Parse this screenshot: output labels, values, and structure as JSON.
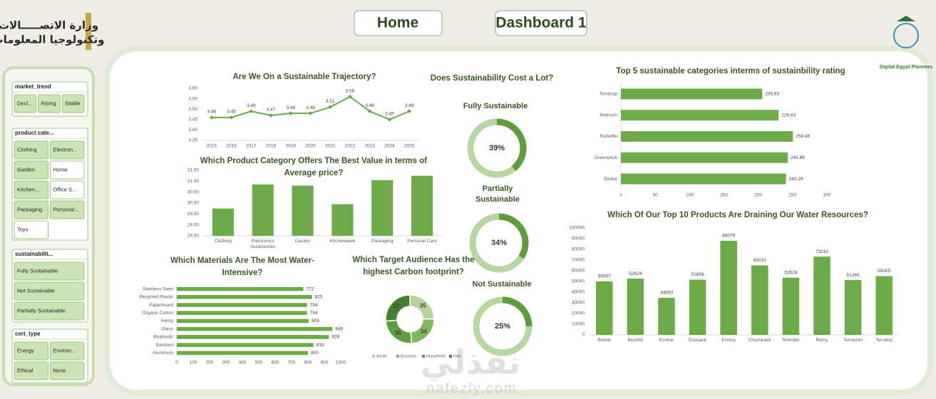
{
  "header": {
    "ministry_logo": [
      "وزارة الاتصـــــالات",
      "وتكنولوجيا المعلومات"
    ],
    "buttons": [
      "Home",
      "Dashboard 1"
    ],
    "partner_logo": "Digital Egypt Pioneers"
  },
  "watermark": [
    "نفذلي",
    "nafezly.com"
  ],
  "slicers": [
    {
      "title": "market_trend",
      "items": [
        {
          "label": "Decl...",
          "selected": true
        },
        {
          "label": "Rising",
          "selected": true
        },
        {
          "label": "Stable",
          "selected": true
        }
      ]
    },
    {
      "title": "product cate...",
      "items": [
        {
          "label": "Clothing",
          "selected": true
        },
        {
          "label": "Electron...",
          "selected": true
        },
        {
          "label": "Garden",
          "selected": true
        },
        {
          "label": "Home",
          "selected": false
        },
        {
          "label": "Kitchen...",
          "selected": true
        },
        {
          "label": "Office S...",
          "selected": false
        },
        {
          "label": "Packaging",
          "selected": true
        },
        {
          "label": "Personal...",
          "selected": true
        },
        {
          "label": "Toys",
          "selected": false
        }
      ]
    },
    {
      "title": "sustainabilit...",
      "items": [
        {
          "label": "Fully Sustainable",
          "selected": true
        },
        {
          "label": "Not Sustainable",
          "selected": true
        },
        {
          "label": "Partially Sustainable",
          "selected": true
        }
      ]
    },
    {
      "title": "cert_type",
      "items": [
        {
          "label": "Energy",
          "selected": true
        },
        {
          "label": "Environ...",
          "selected": true
        },
        {
          "label": "Ethical",
          "selected": true
        },
        {
          "label": "None",
          "selected": true
        }
      ]
    }
  ],
  "chart_data": [
    {
      "type": "line",
      "title": "Are We On a Sustainable Trajectory?",
      "categories": [
        "2015",
        "2016",
        "2017",
        "2018",
        "2019",
        "2020",
        "2021",
        "2022",
        "2023",
        "2024",
        "2025"
      ],
      "values": [
        3.46,
        3.46,
        3.49,
        3.47,
        3.48,
        3.48,
        3.51,
        3.56,
        3.49,
        3.45,
        3.49
      ],
      "color": "#6aa84f",
      "ylim": [
        3.35,
        3.6
      ],
      "yticks": [
        3.35,
        {
          "value": 3.4,
          "label": "3.40"
        },
        3.45,
        {
          "value": 3.5,
          "label": "3.50"
        },
        3.55,
        {
          "value": 3.6,
          "label": "3.60"
        }
      ],
      "grid": false,
      "show_values": true
    },
    {
      "type": "bar",
      "title": "Which Product Category Offers The Best Value in terms of Average price?",
      "categories": [
        "Clothing",
        "Electronics Accessories",
        "Garden",
        "Kitchenware",
        "Packaging",
        "Personal Care"
      ],
      "values": [
        29.75,
        30.85,
        30.8,
        29.95,
        31.05,
        31.25
      ],
      "color": "#6cab47",
      "ylim": [
        28.5,
        31.5
      ],
      "yticks": [
        {
          "value": 28.5,
          "label": "28.50"
        },
        {
          "value": 29,
          "label": "29.00"
        },
        {
          "value": 29.5,
          "label": "29.50"
        },
        {
          "value": 30,
          "label": "30.00"
        },
        {
          "value": 30.5,
          "label": "30.50"
        },
        {
          "value": 31,
          "label": "31.00"
        },
        {
          "value": 31.5,
          "label": "31.50"
        }
      ],
      "grid": false,
      "show_values": false
    },
    {
      "type": "hbar",
      "title": "Which Materials Are The Most Water-Intensive?",
      "categories": [
        "Stainless Steel",
        "Recycled Plastic",
        "Paperboard",
        "Organic Cotton",
        "Hemp",
        "Glass",
        "Bioplastic",
        "Bamboo",
        "Aluminum"
      ],
      "values": [
        772,
        825,
        794,
        794,
        805,
        949,
        928,
        833,
        800
      ],
      "color": "#6cab47",
      "xlim": [
        0,
        1000
      ],
      "xticks": [
        0,
        100,
        200,
        300,
        400,
        500,
        600,
        700,
        800,
        900,
        1000
      ],
      "grid": false,
      "show_values": true
    },
    {
      "type": "donut",
      "title": "Which Target Audience Has the highest Carbon footprint?",
      "categories": [
        "Adults",
        "Business",
        "Household",
        "Kids"
      ],
      "values": [
        35,
        34,
        35,
        37
      ],
      "colors": [
        "#b7d49d",
        "#7eb85a",
        "#5f9e3f",
        "#447f2f"
      ],
      "legend": "bottom"
    },
    {
      "type": "gauge",
      "title": "Does Sustainability Cost a Lot?",
      "categories": [
        "Fully Sustainable",
        "Partially Sustainable",
        "Not Sustainable"
      ],
      "values": [
        39,
        34,
        25
      ],
      "value_labels": [
        "39%",
        "34%",
        "25%"
      ],
      "color": "#5e9c3d",
      "track_color": "#b8d69f"
    },
    {
      "type": "hbar",
      "title": "Top 5 sustainable categories interms of sustainbility rating",
      "categories": [
        "Terracup",
        "Rebrush",
        "Rebottle",
        "Greenpack",
        "Biobar"
      ],
      "values": [
        205.83,
        229.63,
        250.46,
        242.88,
        240.29
      ],
      "color": "#6cab47",
      "xlim": [
        0,
        300
      ],
      "xticks": [
        0,
        50,
        100,
        150,
        200,
        250,
        300
      ],
      "grid": false,
      "show_values": true
    },
    {
      "type": "bar",
      "title": "Which Of Our Top 10 Products Are Draining Our Water Resources?",
      "categories": [
        "Biobar",
        "Bioshirt",
        "Ecobar",
        "Ecopack",
        "Ecotoy",
        "Greenpack",
        "Rebottle",
        "Retoy",
        "Terrashirt",
        "Terratoy"
      ],
      "values": [
        50007,
        52624,
        34650,
        51656,
        88079,
        65010,
        53528,
        73210,
        51265,
        55005
      ],
      "color": "#6cab47",
      "ylim": [
        0,
        100000
      ],
      "yticks": [
        0,
        10000,
        20000,
        30000,
        40000,
        50000,
        60000,
        70000,
        80000,
        90000,
        100000
      ],
      "grid": false,
      "show_values": true
    }
  ]
}
